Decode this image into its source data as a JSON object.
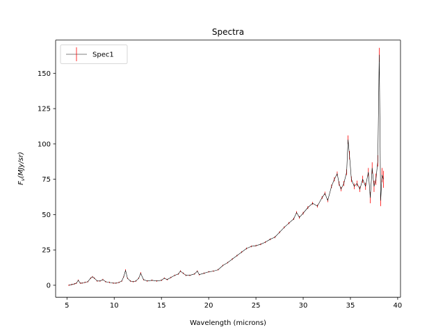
{
  "chart_data": {
    "type": "line",
    "title": "Spectra",
    "xlabel": "Wavelength (microns)",
    "ylabel_main": "F",
    "ylabel_sub": "ν",
    "ylabel_rest": "(MJy/sr)",
    "xlim": [
      3.8,
      40.3
    ],
    "ylim": [
      -8.5,
      173.5
    ],
    "xticks": [
      5,
      10,
      15,
      20,
      25,
      30,
      35,
      40
    ],
    "yticks": [
      0,
      25,
      50,
      75,
      100,
      125,
      150
    ],
    "grid": false,
    "legend_position": "upper-left",
    "colors": {
      "line": "#000000",
      "errorbar": "#ff0000"
    },
    "series": [
      {
        "name": "Spec1",
        "x": [
          5.2,
          5.5,
          5.8,
          6.0,
          6.2,
          6.4,
          6.6,
          6.9,
          7.2,
          7.5,
          7.7,
          7.9,
          8.2,
          8.5,
          8.8,
          9.1,
          9.5,
          9.9,
          10.2,
          10.5,
          10.8,
          11.0,
          11.2,
          11.4,
          11.7,
          12.0,
          12.3,
          12.6,
          12.8,
          13.1,
          13.5,
          14.0,
          14.5,
          15.0,
          15.3,
          15.6,
          16.0,
          16.4,
          16.8,
          17.0,
          17.3,
          17.6,
          18.0,
          18.5,
          18.8,
          19.0,
          19.5,
          20.0,
          20.5,
          21.0,
          21.5,
          22.0,
          22.5,
          23.0,
          23.5,
          24.0,
          24.5,
          25.0,
          25.5,
          26.0,
          26.5,
          27.0,
          27.5,
          28.0,
          28.5,
          29.0,
          29.3,
          29.6,
          30.0,
          30.5,
          31.0,
          31.5,
          32.0,
          32.3,
          32.6,
          33.0,
          33.3,
          33.6,
          33.8,
          34.0,
          34.3,
          34.6,
          34.75,
          34.9,
          35.1,
          35.4,
          35.7,
          36.0,
          36.3,
          36.6,
          36.9,
          37.1,
          37.3,
          37.5,
          37.7,
          37.9,
          38.05,
          38.2,
          38.35,
          38.5
        ],
        "y": [
          0.0,
          0.5,
          1.0,
          1.5,
          3.5,
          1.5,
          1.5,
          2.0,
          2.5,
          5.0,
          6.0,
          5.0,
          3.0,
          3.0,
          4.0,
          2.5,
          2.0,
          1.5,
          1.5,
          2.0,
          3.0,
          6.0,
          10.5,
          5.0,
          3.0,
          2.5,
          3.0,
          5.0,
          8.5,
          4.0,
          3.0,
          3.5,
          3.0,
          3.5,
          5.0,
          4.0,
          5.5,
          7.0,
          8.0,
          10.0,
          8.5,
          7.0,
          7.0,
          8.0,
          10.0,
          7.5,
          8.5,
          9.5,
          10.0,
          11.0,
          14.0,
          16.0,
          18.5,
          21.0,
          23.5,
          26.0,
          27.5,
          28.0,
          29.0,
          30.5,
          32.5,
          34.0,
          37.5,
          41.0,
          44.0,
          47.0,
          51.5,
          48.0,
          51.0,
          55.0,
          58.0,
          56.0,
          62.0,
          65.0,
          60.0,
          70.0,
          75.0,
          79.0,
          72.0,
          68.0,
          72.0,
          80.0,
          103.0,
          92.0,
          75.0,
          70.0,
          72.0,
          68.0,
          75.0,
          70.0,
          80.0,
          62.0,
          83.0,
          70.0,
          75.0,
          88.0,
          163.0,
          60.0,
          78.0,
          75.0
        ],
        "err": [
          0.5,
          0.5,
          0.5,
          0.5,
          0.5,
          0.5,
          0.5,
          0.5,
          0.5,
          0.5,
          0.5,
          0.5,
          0.5,
          0.5,
          0.5,
          0.5,
          0.5,
          0.5,
          0.5,
          0.5,
          0.5,
          0.5,
          0.8,
          0.5,
          0.5,
          0.5,
          0.5,
          0.5,
          0.8,
          0.5,
          0.5,
          0.5,
          0.5,
          0.5,
          0.5,
          0.5,
          0.5,
          0.5,
          0.5,
          0.6,
          0.5,
          0.5,
          0.5,
          0.5,
          0.5,
          0.5,
          0.5,
          0.5,
          0.5,
          0.5,
          0.5,
          0.5,
          0.6,
          0.6,
          0.6,
          0.6,
          0.6,
          0.6,
          0.6,
          0.6,
          0.6,
          0.7,
          0.7,
          0.7,
          0.8,
          0.8,
          0.9,
          0.9,
          0.9,
          1.0,
          1.0,
          1.0,
          1.0,
          1.2,
          1.2,
          1.2,
          1.5,
          1.5,
          1.5,
          1.5,
          1.8,
          2.0,
          3.0,
          3.0,
          2.0,
          2.0,
          2.0,
          2.0,
          2.5,
          2.5,
          3.0,
          4.0,
          4.0,
          4.0,
          4.0,
          4.0,
          5.0,
          4.0,
          5.0,
          6.0
        ]
      }
    ]
  }
}
